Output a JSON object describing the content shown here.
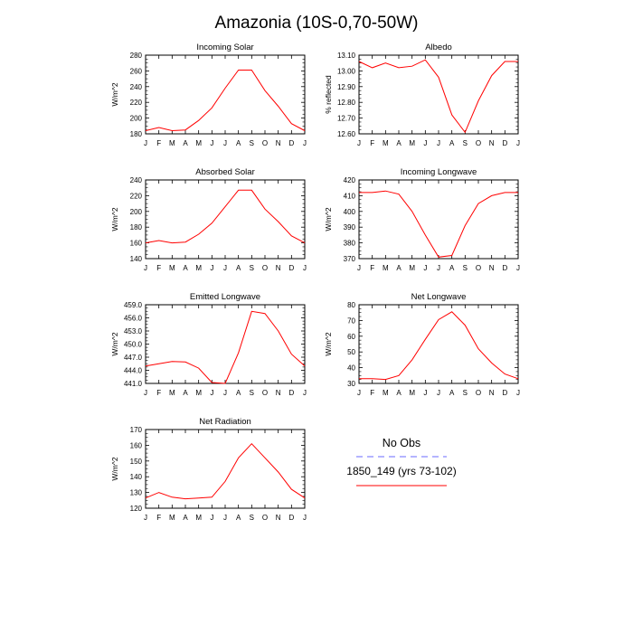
{
  "title": "Amazonia (10S-0,70-50W)",
  "months": [
    "J",
    "F",
    "M",
    "A",
    "M",
    "J",
    "J",
    "A",
    "S",
    "O",
    "N",
    "D",
    "J"
  ],
  "colors": {
    "model": "#ff0000",
    "obs": "#6a6aff",
    "axis": "#000000"
  },
  "chart_data": [
    {
      "type": "line",
      "title": "Incoming Solar",
      "ylabel": "W/m^2",
      "ylim": [
        180,
        280
      ],
      "yticks": [
        "180",
        "200",
        "220",
        "240",
        "260",
        "280"
      ],
      "values": [
        184,
        188,
        184,
        185,
        197,
        213,
        238,
        261,
        261,
        235,
        215,
        193,
        184
      ]
    },
    {
      "type": "line",
      "title": "Albedo",
      "ylabel": "% reflected",
      "ylim": [
        12.6,
        13.1
      ],
      "yticks": [
        "12.60",
        "12.70",
        "12.80",
        "12.90",
        "13.00",
        "13.10"
      ],
      "values": [
        13.06,
        13.02,
        13.05,
        13.02,
        13.03,
        13.07,
        12.96,
        12.72,
        12.61,
        12.81,
        12.97,
        13.06,
        13.06
      ]
    },
    {
      "type": "line",
      "title": "Absorbed Solar",
      "ylabel": "W/m^2",
      "ylim": [
        140,
        240
      ],
      "yticks": [
        "140",
        "160",
        "180",
        "200",
        "220",
        "240"
      ],
      "values": [
        160,
        163,
        160,
        161,
        171,
        185,
        206,
        227,
        227,
        203,
        187,
        169,
        160
      ]
    },
    {
      "type": "line",
      "title": "Incoming Longwave",
      "ylabel": "W/m^2",
      "ylim": [
        370,
        420
      ],
      "yticks": [
        "370",
        "380",
        "390",
        "400",
        "410",
        "420"
      ],
      "values": [
        412,
        412,
        413,
        411,
        400,
        385,
        371,
        372,
        391,
        405,
        410,
        412,
        412
      ]
    },
    {
      "type": "line",
      "title": "Emitted Longwave",
      "ylabel": "W/m^2",
      "ylim": [
        441,
        459
      ],
      "yticks": [
        "441.0",
        "444.0",
        "447.0",
        "450.0",
        "453.0",
        "456.0",
        "459.0"
      ],
      "values": [
        445.0,
        445.5,
        446.0,
        445.9,
        444.5,
        441.2,
        441.0,
        448.0,
        457.5,
        457.0,
        453.0,
        447.7,
        445.0
      ]
    },
    {
      "type": "line",
      "title": "Net Longwave",
      "ylabel": "W/m^2",
      "ylim": [
        30,
        80
      ],
      "yticks": [
        "30",
        "40",
        "50",
        "60",
        "70",
        "80"
      ],
      "values": [
        33,
        33,
        32.5,
        35,
        45,
        58,
        70.5,
        75.5,
        67,
        52,
        43,
        36,
        33
      ]
    },
    {
      "type": "line",
      "title": "Net Radiation",
      "ylabel": "W/m^2",
      "ylim": [
        120,
        170
      ],
      "yticks": [
        "120",
        "130",
        "140",
        "150",
        "160",
        "170"
      ],
      "values": [
        126.5,
        130,
        127,
        126,
        126.5,
        127,
        137,
        152,
        161,
        152,
        143,
        132,
        126.5
      ]
    }
  ],
  "legend": {
    "obs_label": "No Obs",
    "model_label": "1850_149 (yrs 73-102)"
  }
}
